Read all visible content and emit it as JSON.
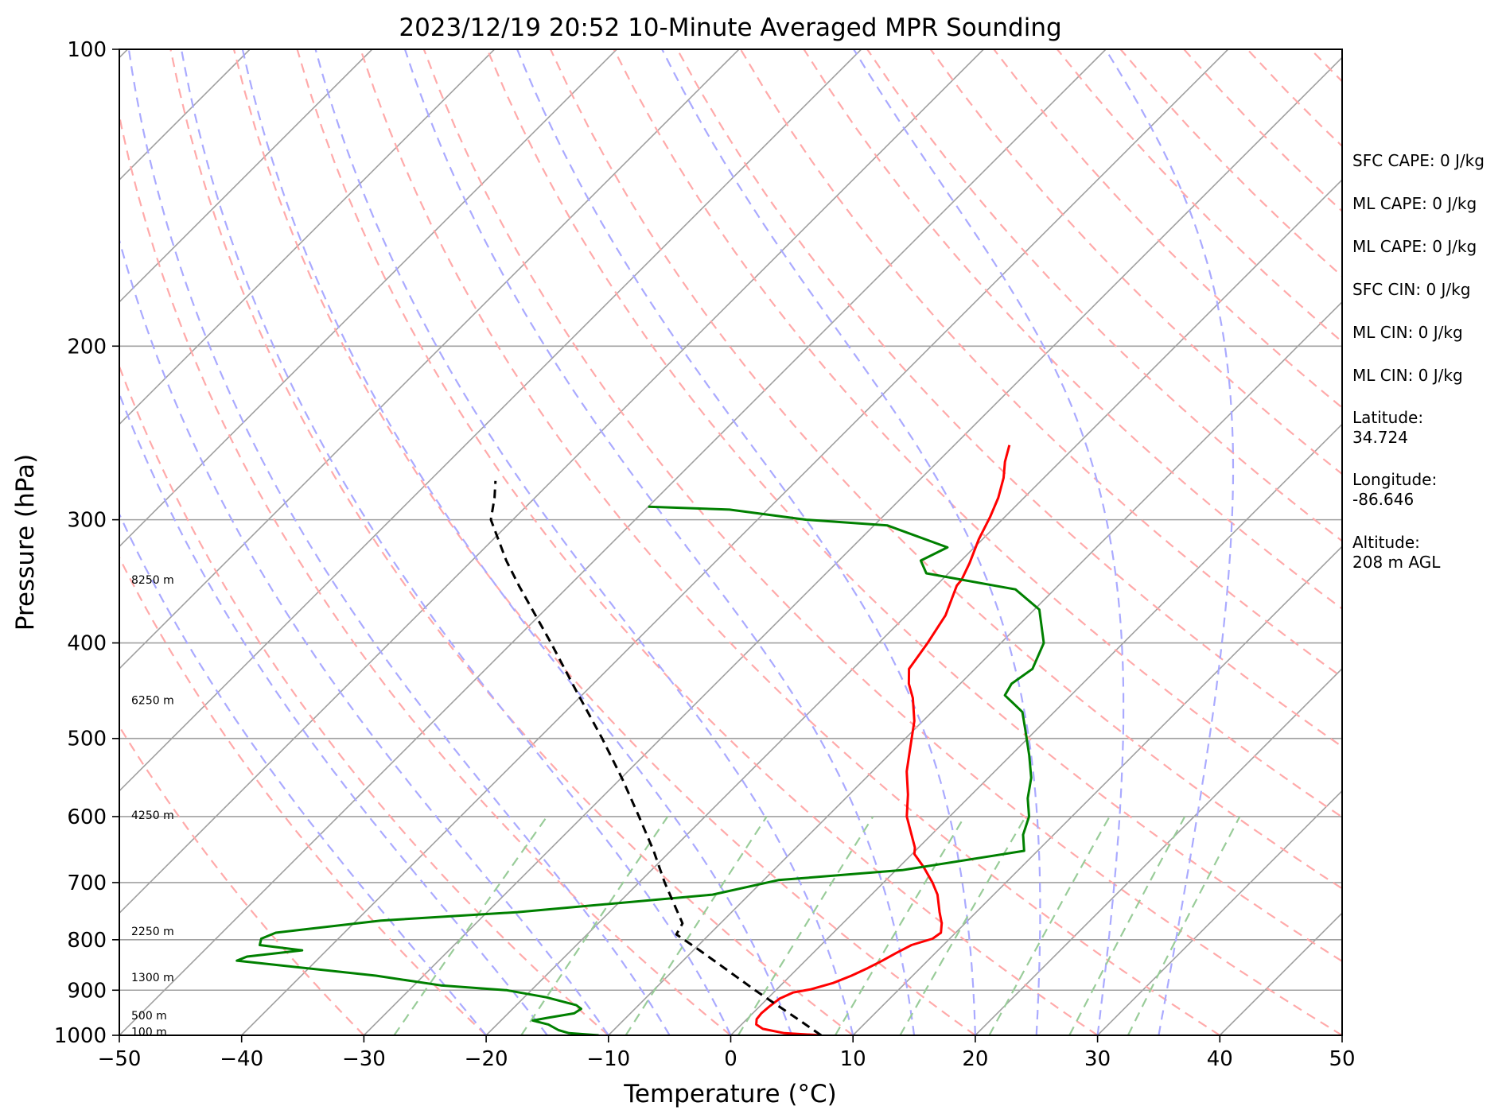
{
  "chart_data": {
    "type": "line",
    "title": "2023/12/19 20:52 10-Minute Averaged MPR Sounding",
    "xlabel": "Temperature (°C)",
    "ylabel": "Pressure (hPa)",
    "xlim": [
      -50,
      50
    ],
    "ylim": [
      1000,
      100
    ],
    "y_scale": "log",
    "skew": "45deg",
    "grid": true,
    "x_ticks": [
      "−50",
      "−40",
      "−30",
      "−20",
      "−10",
      "0",
      "10",
      "20",
      "30",
      "40",
      "50"
    ],
    "x_tick_values": [
      -50,
      -40,
      -30,
      -20,
      -10,
      0,
      10,
      20,
      30,
      40,
      50
    ],
    "y_ticks": [
      "100",
      "200",
      "300",
      "400",
      "500",
      "600",
      "700",
      "800",
      "900",
      "1000"
    ],
    "y_tick_values": [
      100,
      200,
      300,
      400,
      500,
      600,
      700,
      800,
      900,
      1000
    ],
    "height_labels": [
      {
        "text": "8250 m",
        "p": 345
      },
      {
        "text": "6250 m",
        "p": 457
      },
      {
        "text": "4250 m",
        "p": 598
      },
      {
        "text": "2250 m",
        "p": 784
      },
      {
        "text": "1300 m",
        "p": 873
      },
      {
        "text": "500 m",
        "p": 955
      },
      {
        "text": "100 m",
        "p": 992
      }
    ],
    "series": [
      {
        "role": "temperature",
        "color": "#ff0000",
        "points": [
          [
            1000,
            7.4
          ],
          [
            995,
            4.2
          ],
          [
            985,
            2.1
          ],
          [
            975,
            1.2
          ],
          [
            963,
            0.8
          ],
          [
            950,
            0.7
          ],
          [
            935,
            0.8
          ],
          [
            918,
            1.0
          ],
          [
            905,
            1.6
          ],
          [
            898,
            2.8
          ],
          [
            885,
            4.1
          ],
          [
            870,
            5.0
          ],
          [
            855,
            5.7
          ],
          [
            840,
            6.3
          ],
          [
            825,
            6.8
          ],
          [
            810,
            7.4
          ],
          [
            798,
            8.6
          ],
          [
            787,
            8.8
          ],
          [
            770,
            8.1
          ],
          [
            750,
            7.0
          ],
          [
            720,
            5.4
          ],
          [
            700,
            4.0
          ],
          [
            675,
            2.0
          ],
          [
            655,
            0.2
          ],
          [
            645,
            -0.3
          ],
          [
            600,
            -3.5
          ],
          [
            570,
            -5.2
          ],
          [
            540,
            -7.2
          ],
          [
            510,
            -8.9
          ],
          [
            480,
            -10.7
          ],
          [
            455,
            -12.7
          ],
          [
            440,
            -14.2
          ],
          [
            425,
            -15.4
          ],
          [
            400,
            -16.0
          ],
          [
            375,
            -16.8
          ],
          [
            350,
            -18.3
          ],
          [
            345,
            -18.4
          ],
          [
            332,
            -19.1
          ],
          [
            314,
            -20.3
          ],
          [
            298,
            -21.2
          ],
          [
            285,
            -22.1
          ],
          [
            272,
            -23.3
          ],
          [
            262,
            -24.5
          ],
          [
            252,
            -25.5
          ]
        ]
      },
      {
        "role": "dewpoint",
        "color": "#008000",
        "points": [
          [
            1000,
            -10.8
          ],
          [
            995,
            -13.4
          ],
          [
            988,
            -14.5
          ],
          [
            975,
            -15.8
          ],
          [
            966,
            -17.4
          ],
          [
            960,
            -16.4
          ],
          [
            950,
            -14.6
          ],
          [
            940,
            -14.4
          ],
          [
            932,
            -15.1
          ],
          [
            915,
            -18.2
          ],
          [
            900,
            -22.0
          ],
          [
            890,
            -27.8
          ],
          [
            870,
            -33.9
          ],
          [
            840,
            -46.5
          ],
          [
            832,
            -46.0
          ],
          [
            820,
            -42.0
          ],
          [
            810,
            -45.9
          ],
          [
            798,
            -46.3
          ],
          [
            787,
            -45.6
          ],
          [
            765,
            -38.0
          ],
          [
            750,
            -27.5
          ],
          [
            720,
            -13.0
          ],
          [
            696,
            -8.8
          ],
          [
            680,
            0.5
          ],
          [
            650,
            8.9
          ],
          [
            626,
            7.5
          ],
          [
            600,
            6.5
          ],
          [
            575,
            4.9
          ],
          [
            548,
            3.5
          ],
          [
            520,
            1.5
          ],
          [
            490,
            -0.9
          ],
          [
            470,
            -2.6
          ],
          [
            452,
            -5.4
          ],
          [
            440,
            -5.8
          ],
          [
            425,
            -5.3
          ],
          [
            400,
            -6.5
          ],
          [
            370,
            -9.6
          ],
          [
            353,
            -13.2
          ],
          [
            340,
            -21.8
          ],
          [
            330,
            -23.3
          ],
          [
            320,
            -22.2
          ],
          [
            304,
            -28.9
          ],
          [
            300,
            -36.0
          ],
          [
            293,
            -43.1
          ],
          [
            291,
            -50.0
          ]
        ]
      },
      {
        "role": "parcel",
        "color": "#000000",
        "points": [
          [
            1000,
            7.4
          ],
          [
            960,
            3.9
          ],
          [
            920,
            0.2
          ],
          [
            900,
            -1.7
          ],
          [
            860,
            -5.5
          ],
          [
            820,
            -9.5
          ],
          [
            790,
            -12.7
          ],
          [
            770,
            -13.1
          ],
          [
            700,
            -17.9
          ],
          [
            650,
            -21.4
          ],
          [
            600,
            -25.4
          ],
          [
            550,
            -29.8
          ],
          [
            500,
            -34.8
          ],
          [
            450,
            -40.5
          ],
          [
            400,
            -46.8
          ],
          [
            350,
            -54.1
          ],
          [
            330,
            -57.2
          ],
          [
            300,
            -61.8
          ],
          [
            285,
            -63.3
          ],
          [
            274,
            -64.6
          ]
        ]
      }
    ],
    "reference_lines": {
      "isotherms_color": "#a0a0a0",
      "dry_adiabats_color": "#ffaaaa",
      "moist_adiabats_color": "#aaaaff",
      "mixing_ratio_color": "#99cc99"
    }
  },
  "info_panel": [
    "SFC CAPE: 0 J/kg",
    "ML CAPE: 0 J/kg",
    "ML CAPE: 0 J/kg",
    "SFC CIN: 0 J/kg",
    "ML CIN: 0 J/kg",
    "ML CIN: 0 J/kg",
    "Latitude:",
    "34.724",
    "Longitude:",
    "-86.646",
    "Altitude:",
    "208 m AGL"
  ]
}
